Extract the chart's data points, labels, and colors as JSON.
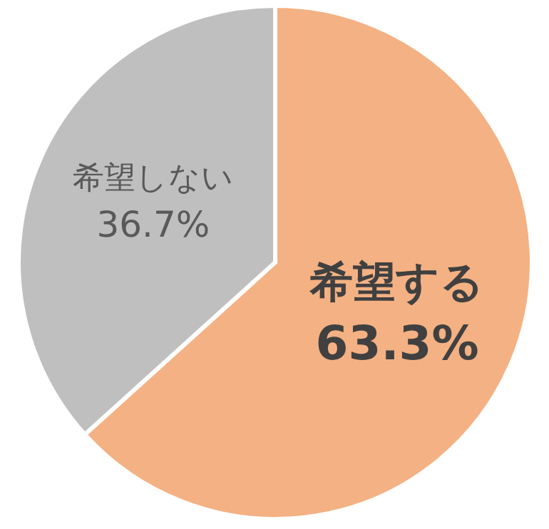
{
  "chart_data": {
    "type": "pie",
    "categories": [
      "希望する",
      "希望しない"
    ],
    "values": [
      63.3,
      36.7
    ],
    "colors": [
      "#f4b183",
      "#bfbfbf"
    ],
    "value_labels": [
      "63.3%",
      "36.7%"
    ]
  }
}
